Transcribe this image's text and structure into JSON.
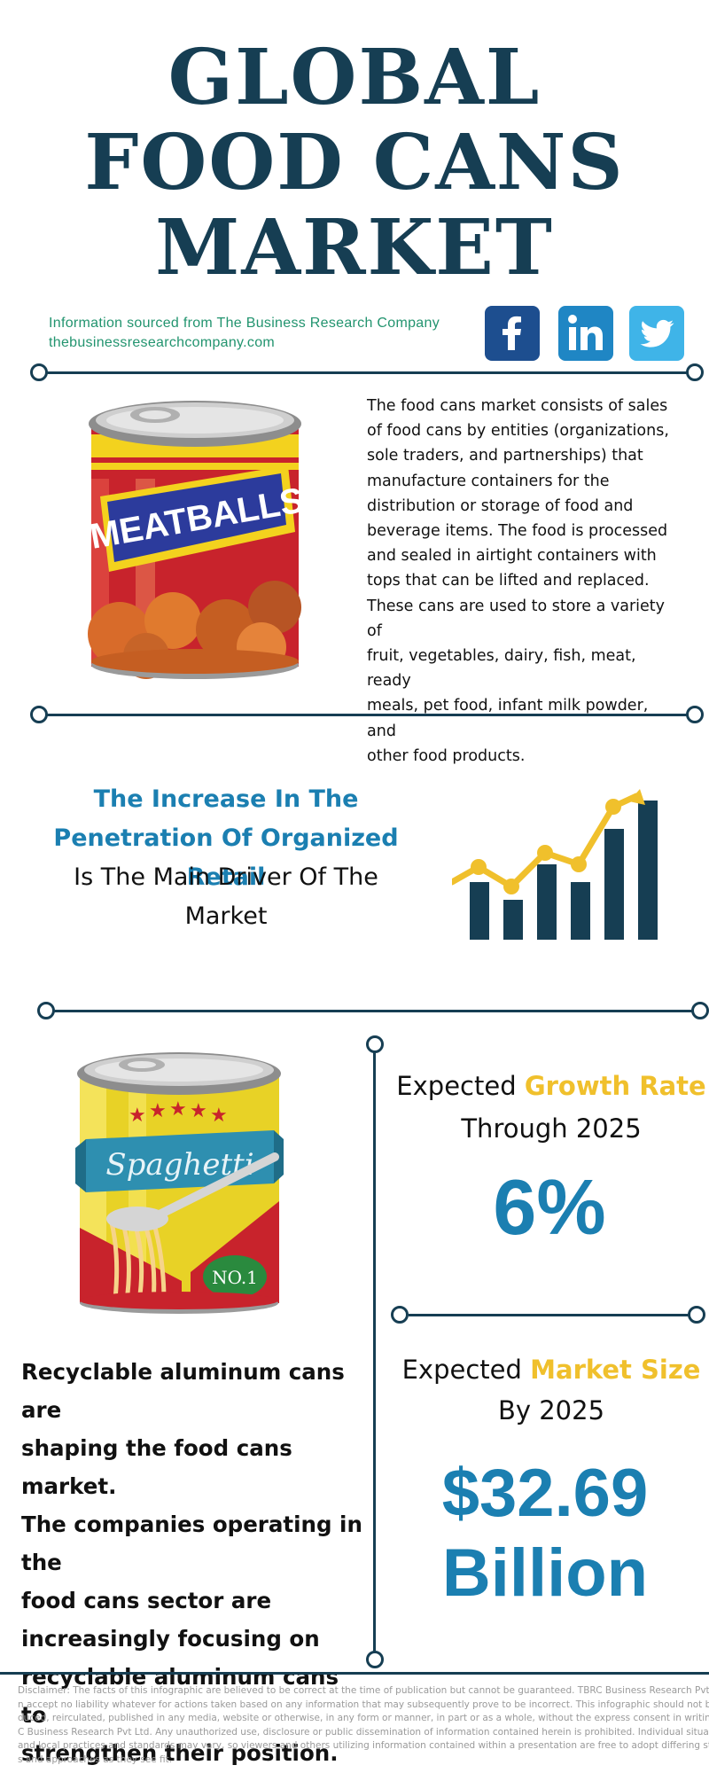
{
  "header": {
    "title_lines": [
      "GLOBAL",
      "FOOD CANS",
      "MARKET"
    ],
    "source_text": "Information sourced from The Business Research Company",
    "source_url": "thebusinessresearchcompany.com"
  },
  "social": [
    {
      "name": "facebook-icon",
      "color": "#1d4e8f"
    },
    {
      "name": "linkedin-icon",
      "color": "#1f86c4"
    },
    {
      "name": "twitter-icon",
      "color": "#3fb4e8"
    }
  ],
  "intro": {
    "description_lines": [
      "The food cans market consists of sales",
      "of food cans by entities (organizations,",
      "sole traders, and partnerships) that",
      "manufacture containers for the",
      "distribution or storage of food and",
      "beverage items. The food is processed",
      "and sealed in airtight containers with",
      "tops that can be lifted and replaced.",
      "These cans are used to store a variety of",
      "fruit, vegetables, dairy, fish, meat, ready",
      "meals, pet food, infant milk powder, and",
      "other food products."
    ],
    "can_label": "MEATBALLS"
  },
  "driver": {
    "highlight_1": "The Increase In The",
    "highlight_2": "Penetration Of Organized Retail",
    "rest_1": "Is The Main Driver Of The",
    "rest_2": "Market"
  },
  "spaghetti_can": {
    "label": "Spaghetti",
    "badge": "NO.1"
  },
  "trend": {
    "lines": [
      "Recyclable aluminum cans are",
      "shaping the food cans market.",
      "The companies operating in the",
      "food cans sector are",
      "increasingly focusing on",
      "recyclable aluminum cans to",
      "strengthen their position."
    ]
  },
  "growth": {
    "prefix": "Expected",
    "accent": "Growth Rate",
    "suffix": "Through 2025",
    "value": "6%"
  },
  "market_size": {
    "prefix": "Expected",
    "accent": "Market Size",
    "suffix": "By 2025",
    "value_1": "$32.69",
    "value_2": "Billion"
  },
  "disclaimer": {
    "lines": [
      "Disclaimer: The facts of this infographic are believed to be correct at the time of publication but cannot be guaranteed. TBRC Business Research Pvt Ltd c",
      "n accept no liability whatever for actions taken based on any information that may subsequently prove to be incorrect. This infographic should not be repr",
      "duced, reirculated, published in any media, website or otherwise, in any form or manner, in part or as a whole, without the express consent in writing of TB",
      "C Business Research Pvt Ltd. Any unauthorized use, disclosure or public dissemination of information contained herein is prohibited. Individual situations",
      "and local practices and standards may vary, so viewers and others utilizing information contained within a presentation are free to adopt differing standar",
      "s and approaches as they see fit."
    ]
  },
  "colors": {
    "navy": "#163e53",
    "blue": "#1b7fb1",
    "gold": "#f0c02c",
    "green": "#22946f"
  }
}
